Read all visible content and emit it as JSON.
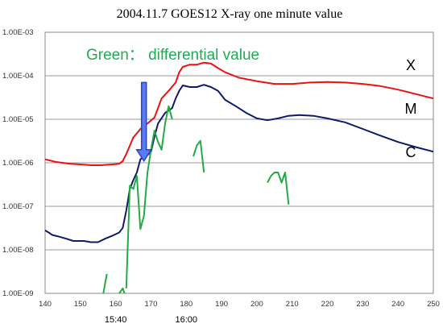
{
  "chart_data": {
    "type": "line",
    "title": "2004.11.7  GOES12 X-ray one minute value",
    "annotation": "Green： differential value",
    "y_scale": "log",
    "xlim": [
      140,
      250
    ],
    "ylim": [
      1e-09,
      0.001
    ],
    "grid": true,
    "x_ticks": [
      "140",
      "150",
      "160",
      "170",
      "180",
      "190",
      "200",
      "210",
      "220",
      "230",
      "240",
      "250"
    ],
    "y_ticks": [
      "1.00E-09",
      "1.00E-08",
      "1.00E-07",
      "1.00E-06",
      "1.00E-05",
      "1.00E-04",
      "1.00E-03"
    ],
    "time_labels": [
      {
        "x": 160,
        "label": "15:40"
      },
      {
        "x": 180,
        "label": "16:00"
      }
    ],
    "class_labels": [
      {
        "label": "X",
        "y": 0.0001
      },
      {
        "label": "M",
        "y": 1e-05
      },
      {
        "label": "C",
        "y": 1e-06
      }
    ],
    "arrow_at": {
      "x": 168,
      "from_y": 7e-05,
      "to_y": 1.1e-06,
      "color": "#2a3fd6"
    },
    "series": [
      {
        "color": "#ee1111",
        "segments": [
          [
            [
              140,
              1.2e-06
            ],
            [
              143,
              1.05e-06
            ],
            [
              147,
              9.5e-07
            ],
            [
              150,
              9.2e-07
            ],
            [
              153,
              8.8e-07
            ],
            [
              156,
              8.8e-07
            ],
            [
              159,
              9.2e-07
            ],
            [
              161,
              9.5e-07
            ],
            [
              162,
              1.1e-06
            ],
            [
              163,
              1.6e-06
            ],
            [
              165,
              3.8e-06
            ],
            [
              167,
              6e-06
            ],
            [
              169,
              8e-06
            ],
            [
              171,
              1.1e-05
            ],
            [
              173,
              3e-05
            ],
            [
              175,
              4.5e-05
            ],
            [
              177,
              7e-05
            ],
            [
              178,
              0.00012
            ],
            [
              179,
              0.00016
            ],
            [
              181,
              0.00018
            ],
            [
              183,
              0.00018
            ],
            [
              185,
              0.0002
            ],
            [
              187,
              0.00019
            ],
            [
              189,
              0.00015
            ],
            [
              191,
              0.00012
            ],
            [
              195,
              9e-05
            ],
            [
              200,
              7.5e-05
            ],
            [
              205,
              6.5e-05
            ],
            [
              210,
              6.5e-05
            ],
            [
              215,
              7e-05
            ],
            [
              220,
              7.2e-05
            ],
            [
              225,
              7e-05
            ],
            [
              230,
              6.5e-05
            ],
            [
              235,
              5.8e-05
            ],
            [
              240,
              4.8e-05
            ],
            [
              245,
              3.8e-05
            ],
            [
              250,
              3e-05
            ]
          ]
        ]
      },
      {
        "color": "#0d1b6b",
        "segments": [
          [
            [
              140,
              2.8e-08
            ],
            [
              141,
              2.5e-08
            ],
            [
              142,
              2.2e-08
            ],
            [
              144,
              2e-08
            ],
            [
              146,
              1.8e-08
            ],
            [
              148,
              1.6e-08
            ],
            [
              151,
              1.6e-08
            ],
            [
              153,
              1.5e-08
            ],
            [
              155,
              1.5e-08
            ],
            [
              157,
              1.8e-08
            ],
            [
              159,
              2.1e-08
            ],
            [
              161,
              2.5e-08
            ],
            [
              162,
              3.2e-08
            ],
            [
              163,
              8e-08
            ],
            [
              164,
              2.5e-07
            ],
            [
              165,
              4e-07
            ],
            [
              166,
              6e-07
            ],
            [
              167,
              1.2e-06
            ],
            [
              168,
              1.4e-06
            ],
            [
              169,
              1.5e-06
            ],
            [
              170,
              1.8e-06
            ],
            [
              171,
              4e-06
            ],
            [
              172,
              8e-06
            ],
            [
              174,
              1.4e-05
            ],
            [
              176,
              1.8e-05
            ],
            [
              177,
              3e-05
            ],
            [
              178,
              4.5e-05
            ],
            [
              179,
              6e-05
            ],
            [
              181,
              5.5e-05
            ],
            [
              183,
              5.5e-05
            ],
            [
              185,
              6.2e-05
            ],
            [
              187,
              5.5e-05
            ],
            [
              189,
              4.5e-05
            ],
            [
              191,
              2.8e-05
            ],
            [
              194,
              2e-05
            ],
            [
              197,
              1.4e-05
            ],
            [
              200,
              1.05e-05
            ],
            [
              203,
              9.5e-06
            ],
            [
              206,
              1.05e-05
            ],
            [
              209,
              1.2e-05
            ],
            [
              212,
              1.25e-05
            ],
            [
              216,
              1.2e-05
            ],
            [
              220,
              1.05e-05
            ],
            [
              225,
              8.5e-06
            ],
            [
              230,
              6e-06
            ],
            [
              235,
              4.2e-06
            ],
            [
              240,
              3e-06
            ],
            [
              245,
              2.3e-06
            ],
            [
              250,
              1.8e-06
            ]
          ]
        ]
      },
      {
        "color": "#22aa44",
        "segments": [
          [
            [
              156.5,
              1e-09
            ],
            [
              157.5,
              2.8e-09
            ]
          ],
          [
            [
              161,
              1e-09
            ],
            [
              162,
              1.3e-09
            ],
            [
              162.5,
              1e-09
            ]
          ],
          [
            [
              163,
              1.3e-09
            ],
            [
              164,
              3e-07
            ],
            [
              165,
              2.5e-07
            ],
            [
              166,
              5e-07
            ],
            [
              167,
              3e-08
            ],
            [
              168,
              6e-08
            ],
            [
              169,
              6e-07
            ],
            [
              170,
              2e-06
            ],
            [
              171,
              5.5e-06
            ],
            [
              172,
              3e-06
            ],
            [
              173,
              2e-06
            ],
            [
              174,
              8e-06
            ],
            [
              175,
              2e-05
            ],
            [
              176,
              1e-05
            ]
          ],
          [
            [
              182,
              1.4e-06
            ],
            [
              183,
              2.5e-06
            ],
            [
              184,
              3.2e-06
            ],
            [
              185,
              6e-07
            ]
          ],
          [
            [
              203,
              3.5e-07
            ],
            [
              204,
              5e-07
            ],
            [
              205,
              6e-07
            ],
            [
              206,
              6e-07
            ],
            [
              207,
              3.5e-07
            ],
            [
              208,
              6e-07
            ],
            [
              209,
              1.1e-07
            ]
          ]
        ]
      }
    ]
  }
}
